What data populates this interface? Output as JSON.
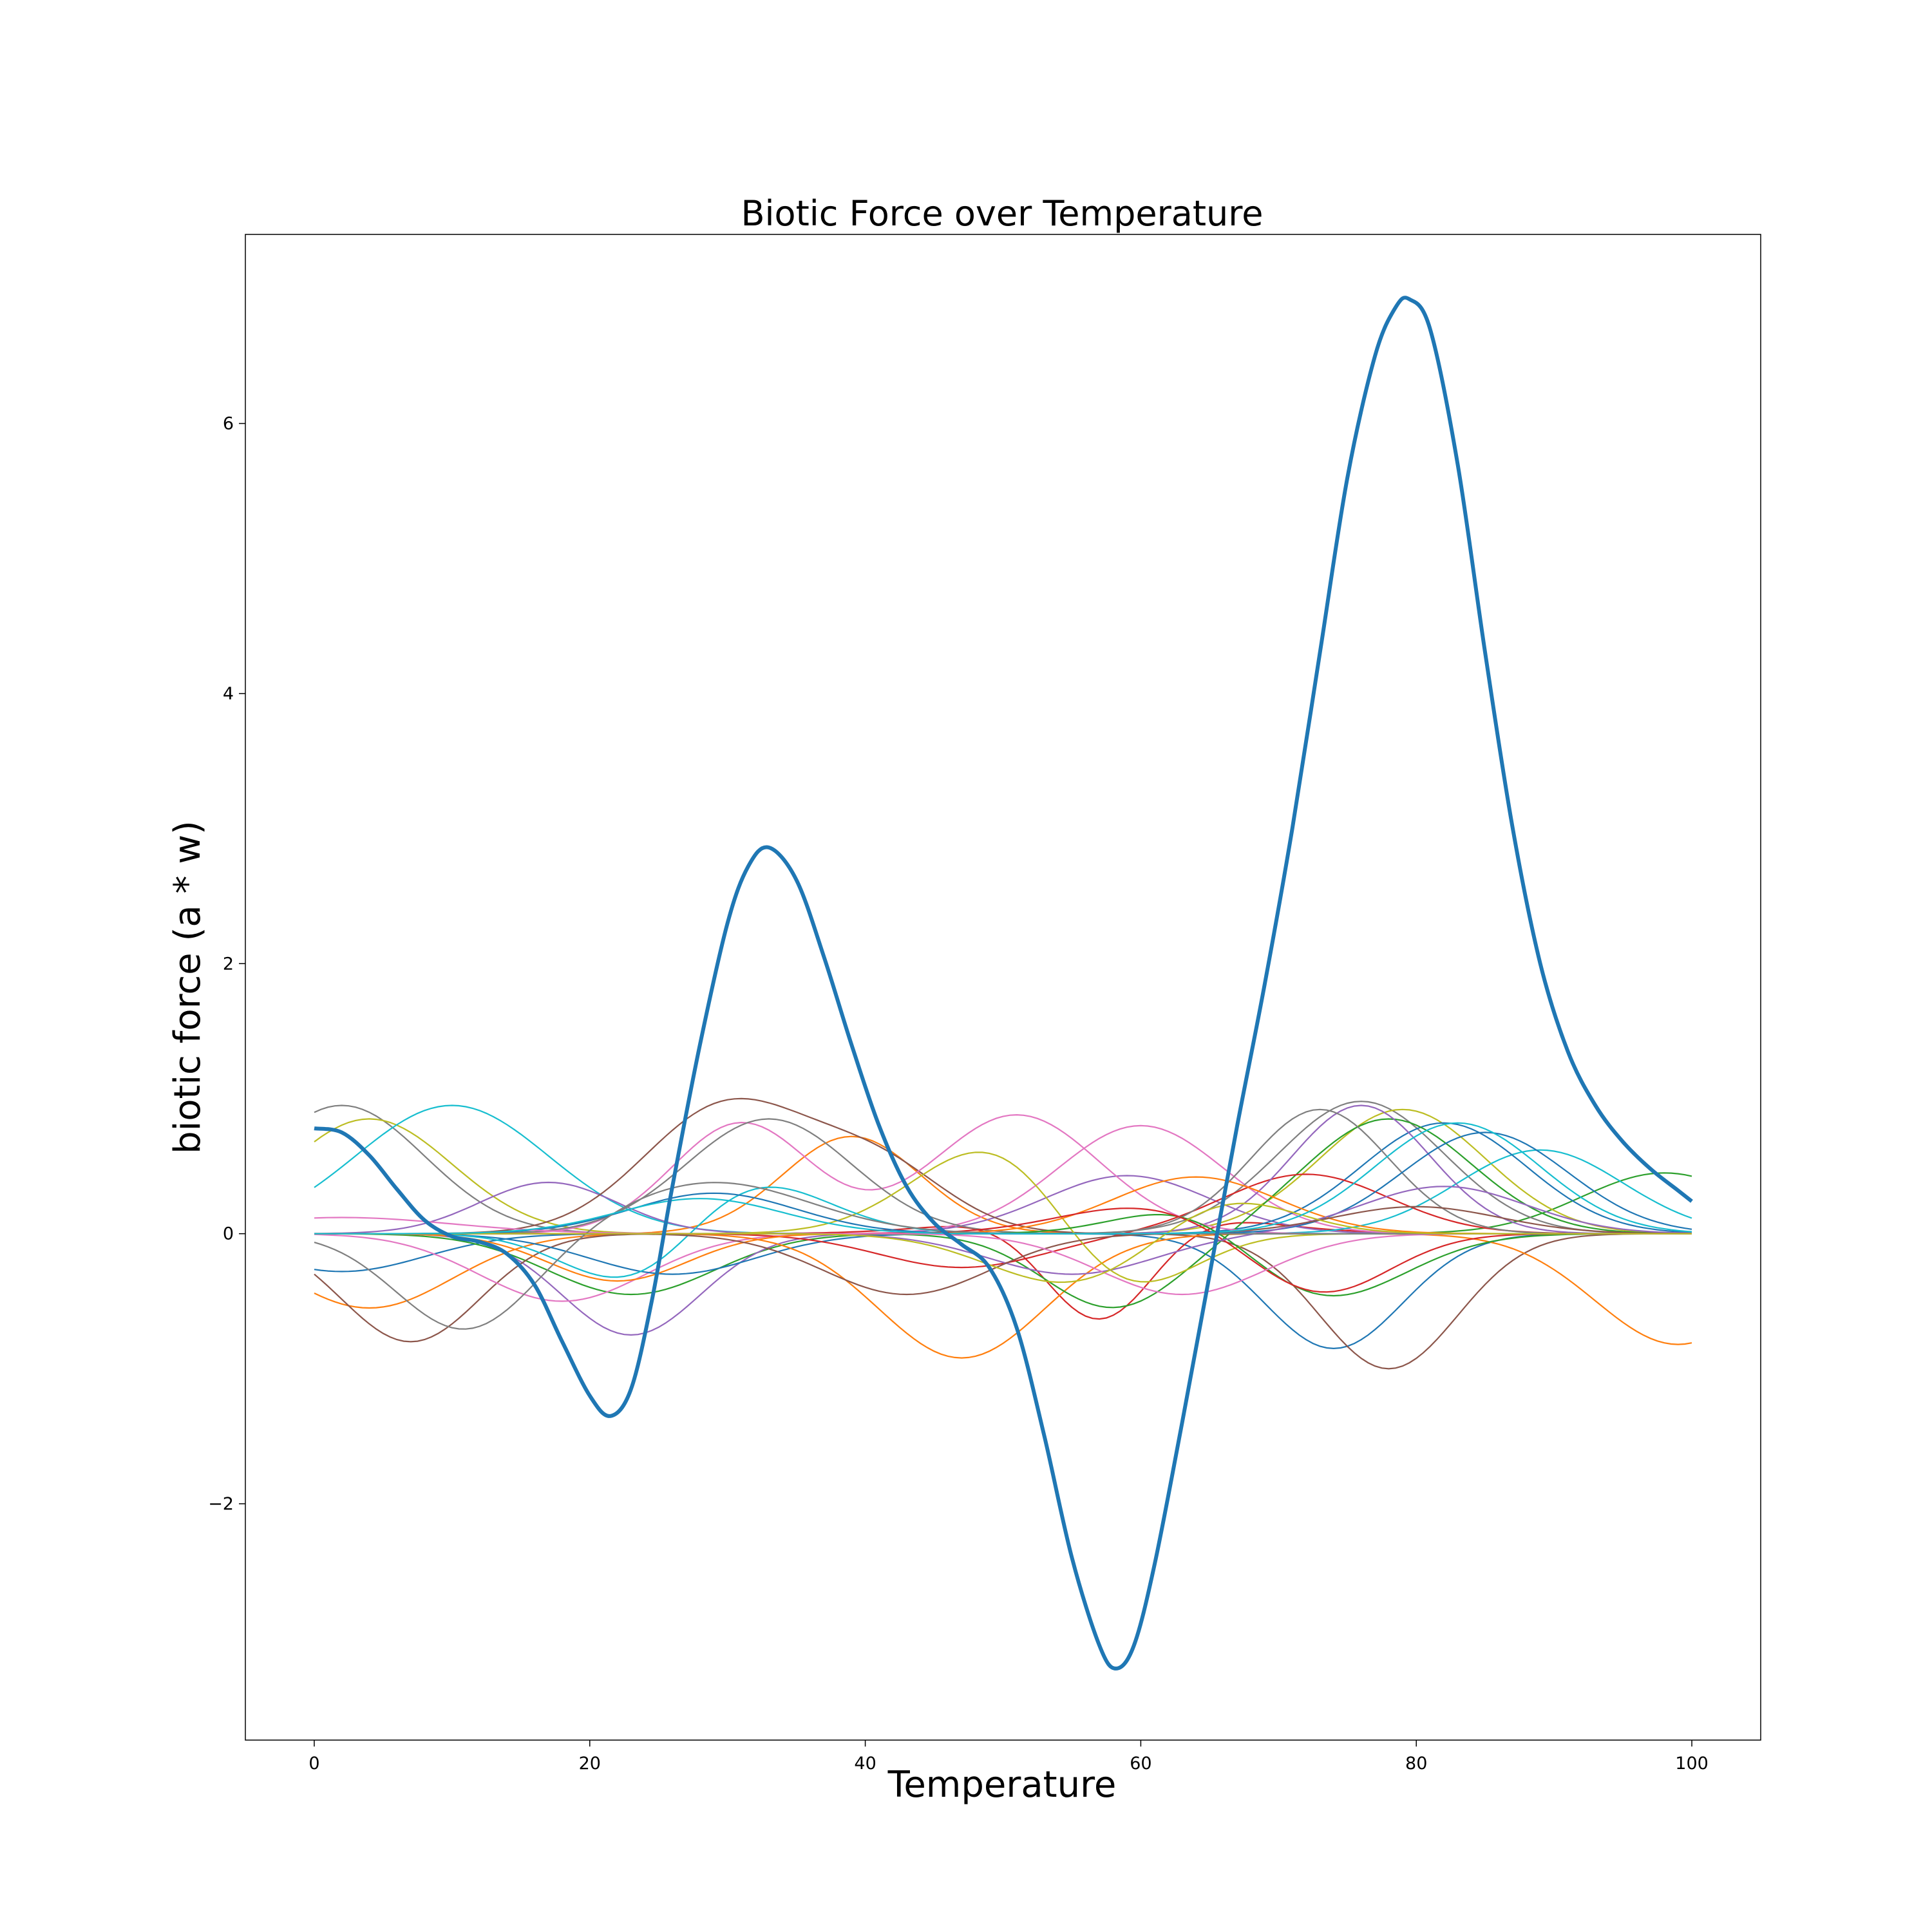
{
  "chart_data": {
    "type": "line",
    "title": "Biotic Force over Temperature",
    "xlabel": "Temperature",
    "ylabel": "biotic force (a * w)",
    "xlim": [
      -5,
      105
    ],
    "ylim": [
      -3.75,
      7.4
    ],
    "xticks": [
      0,
      20,
      40,
      60,
      80,
      100
    ],
    "yticks": [
      -2,
      0,
      2,
      4,
      6
    ],
    "ytick_labels": [
      "−2",
      "0",
      "2",
      "4",
      "6"
    ],
    "grid": false,
    "legend": "none",
    "total_series": {
      "color": "#1f77b4",
      "points": [
        [
          0,
          0.78
        ],
        [
          2,
          0.75
        ],
        [
          4,
          0.58
        ],
        [
          6,
          0.33
        ],
        [
          8,
          0.1
        ],
        [
          10,
          -0.02
        ],
        [
          12,
          -0.06
        ],
        [
          14,
          -0.15
        ],
        [
          16,
          -0.38
        ],
        [
          18,
          -0.8
        ],
        [
          20,
          -1.2
        ],
        [
          21.5,
          -1.35
        ],
        [
          23,
          -1.15
        ],
        [
          24.5,
          -0.5
        ],
        [
          26,
          0.35
        ],
        [
          28,
          1.4
        ],
        [
          30,
          2.3
        ],
        [
          31.5,
          2.72
        ],
        [
          33,
          2.86
        ],
        [
          35,
          2.62
        ],
        [
          37,
          2.05
        ],
        [
          39,
          1.4
        ],
        [
          41,
          0.8
        ],
        [
          43,
          0.35
        ],
        [
          45,
          0.08
        ],
        [
          47,
          -0.08
        ],
        [
          49,
          -0.25
        ],
        [
          51,
          -0.7
        ],
        [
          53,
          -1.5
        ],
        [
          55,
          -2.4
        ],
        [
          57,
          -3.05
        ],
        [
          58.2,
          -3.22
        ],
        [
          59.5,
          -3.05
        ],
        [
          61,
          -2.45
        ],
        [
          63,
          -1.4
        ],
        [
          65,
          -0.3
        ],
        [
          67,
          0.8
        ],
        [
          69,
          1.85
        ],
        [
          71,
          3.0
        ],
        [
          73,
          4.3
        ],
        [
          75,
          5.6
        ],
        [
          77,
          6.5
        ],
        [
          78.5,
          6.86
        ],
        [
          79.5,
          6.92
        ],
        [
          81,
          6.7
        ],
        [
          83,
          5.7
        ],
        [
          85,
          4.3
        ],
        [
          87,
          3.0
        ],
        [
          89,
          2.0
        ],
        [
          91,
          1.35
        ],
        [
          93,
          0.95
        ],
        [
          95,
          0.68
        ],
        [
          97,
          0.48
        ],
        [
          99,
          0.32
        ],
        [
          100,
          0.24
        ]
      ]
    },
    "species_series": [
      {
        "color": "#1f77b4",
        "peak": -0.28,
        "center": 2,
        "width": 6,
        "peak2": -0.85,
        "center2": 74,
        "width2": 5
      },
      {
        "color": "#ff7f0e",
        "peak": -0.55,
        "center": 4,
        "width": 6,
        "peak2": 0.72,
        "center2": 39,
        "width2": 5
      },
      {
        "color": "#2ca02c",
        "peak": -0.45,
        "center": 23,
        "width": 6,
        "peak2": 0.45,
        "center2": 98,
        "width2": 6
      },
      {
        "color": "#d62728",
        "peak": 0.22,
        "center": 58,
        "width": 8,
        "peak2": -0.85,
        "center2": 57,
        "width2": 4
      },
      {
        "color": "#9467bd",
        "peak": -0.75,
        "center": 23,
        "width": 5,
        "peak2": 0.43,
        "center2": 59,
        "width2": 6
      },
      {
        "color": "#8c564b",
        "peak": -0.8,
        "center": 7,
        "width": 5,
        "peak2": -1.0,
        "center2": 78,
        "width2": 5
      },
      {
        "color": "#e377c2",
        "peak": 0.8,
        "center": 60,
        "width": 6,
        "peak2": -0.5,
        "center2": 18,
        "width2": 6
      },
      {
        "color": "#7f7f7f",
        "peak": 0.95,
        "center": 2,
        "width": 6,
        "peak2": 0.98,
        "center2": 76,
        "width2": 6
      },
      {
        "color": "#bcbd22",
        "peak": 0.85,
        "center": 4,
        "width": 6,
        "peak2": 0.92,
        "center2": 79,
        "width2": 6
      },
      {
        "color": "#17becf",
        "peak": 0.95,
        "center": 10,
        "width": 7,
        "peak2": 0.62,
        "center2": 89,
        "width2": 6
      },
      {
        "color": "#1f77b4",
        "peak": 0.82,
        "center": 82,
        "width": 6,
        "peak2": -0.3,
        "center2": 26,
        "width2": 6
      },
      {
        "color": "#ff7f0e",
        "peak": -0.92,
        "center": 47,
        "width": 6,
        "peak2": -0.82,
        "center2": 99,
        "width2": 6
      },
      {
        "color": "#2ca02c",
        "peak": 0.85,
        "center": 78,
        "width": 6,
        "peak2": -0.55,
        "center2": 58,
        "width2": 5
      },
      {
        "color": "#d62728",
        "peak": 0.44,
        "center": 72,
        "width": 6,
        "peak2": -0.25,
        "center2": 47,
        "width2": 6
      },
      {
        "color": "#9467bd",
        "peak": 0.95,
        "center": 76,
        "width": 5,
        "peak2": 0.38,
        "center2": 17,
        "width2": 5
      },
      {
        "color": "#8c564b",
        "peak": 0.95,
        "center": 30,
        "width": 6,
        "peak2": 0.47,
        "center2": 41,
        "width2": 5
      },
      {
        "color": "#e377c2",
        "peak": 0.88,
        "center": 51,
        "width": 6,
        "peak2": 0.82,
        "center2": 31,
        "width2": 5
      },
      {
        "color": "#7f7f7f",
        "peak": 0.85,
        "center": 33,
        "width": 6,
        "peak2": 0.92,
        "center2": 73,
        "width2": 5
      },
      {
        "color": "#bcbd22",
        "peak": 0.72,
        "center": 50,
        "width": 6,
        "peak2": -0.58,
        "center2": 58,
        "width2": 5
      },
      {
        "color": "#17becf",
        "peak": 0.52,
        "center": 30,
        "width": 6,
        "peak2": -0.58,
        "center2": 24,
        "width2": 5
      },
      {
        "color": "#1f77b4",
        "peak": 0.75,
        "center": 85,
        "width": 6,
        "peak2": 0.3,
        "center2": 29,
        "width2": 6
      },
      {
        "color": "#ff7f0e",
        "peak": 0.42,
        "center": 64,
        "width": 6,
        "peak2": -0.35,
        "center2": 22,
        "width2": 5
      },
      {
        "color": "#2ca02c",
        "peak": -0.5,
        "center": 73,
        "width": 6,
        "peak2": 0.25,
        "center2": 64,
        "width2": 5
      },
      {
        "color": "#d62728",
        "peak": -0.45,
        "center": 73,
        "width": 5,
        "peak2": 0.2,
        "center2": 60,
        "width2": 6
      },
      {
        "color": "#9467bd",
        "peak": 0.35,
        "center": 82,
        "width": 6,
        "peak2": -0.3,
        "center2": 55,
        "width2": 6
      },
      {
        "color": "#8c564b",
        "peak": 0.2,
        "center": 80,
        "width": 6,
        "peak2": -0.45,
        "center2": 43,
        "width2": 6
      },
      {
        "color": "#e377c2",
        "peak": -0.45,
        "center": 63,
        "width": 6,
        "peak2": 0.12,
        "center2": 2,
        "width2": 8
      },
      {
        "color": "#7f7f7f",
        "peak": 0.38,
        "center": 29,
        "width": 7,
        "peak2": -0.72,
        "center2": 11,
        "width2": 5
      },
      {
        "color": "#bcbd22",
        "peak": -0.38,
        "center": 55,
        "width": 6,
        "peak2": 0.28,
        "center2": 66,
        "width2": 5
      },
      {
        "color": "#17becf",
        "peak": 0.26,
        "center": 28,
        "width": 6,
        "peak2": 0.82,
        "center2": 83,
        "width2": 6
      }
    ]
  }
}
